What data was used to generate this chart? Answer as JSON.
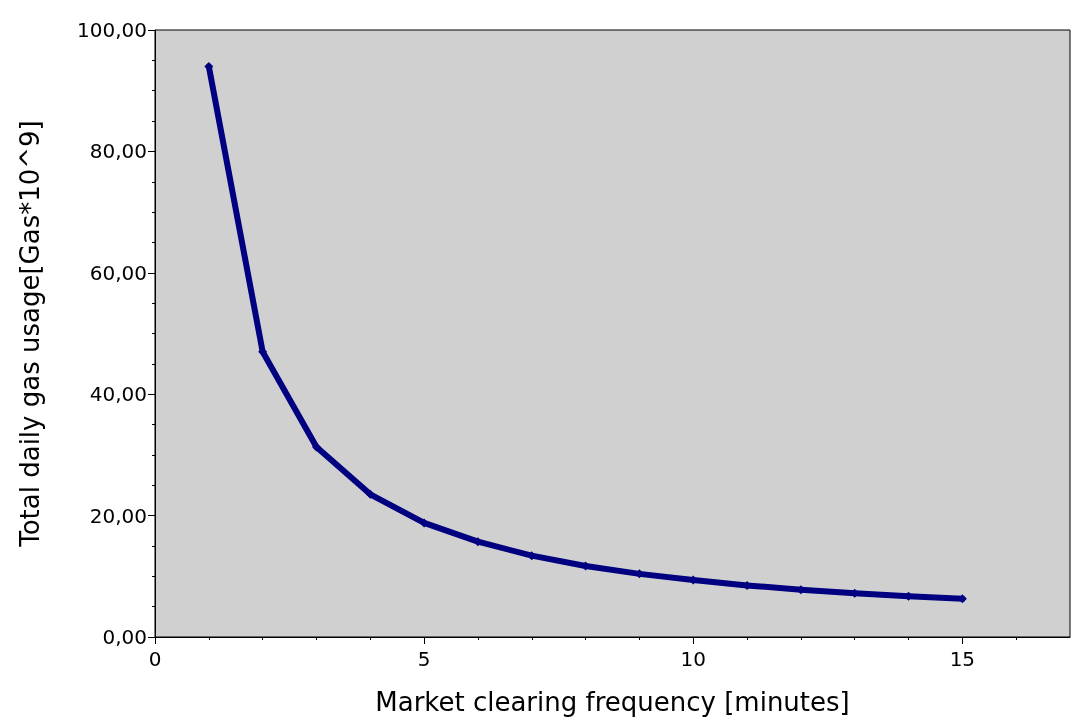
{
  "chart_data": {
    "type": "line",
    "xlabel": "Market clearing frequency [minutes]",
    "ylabel": "Total daily gas usage[Gas*10^9]",
    "x": [
      1,
      2,
      3,
      4,
      5,
      6,
      7,
      8,
      9,
      10,
      11,
      12,
      13,
      14,
      15
    ],
    "series": [
      {
        "color": "#000080",
        "values": [
          94,
          47,
          31.3,
          23.5,
          18.8,
          15.7,
          13.4,
          11.7,
          10.4,
          9.4,
          8.5,
          7.8,
          7.2,
          6.7,
          6.3
        ]
      }
    ],
    "xlim": [
      0,
      17
    ],
    "xticks": [
      0,
      5,
      10,
      15
    ],
    "ylim": [
      0,
      100
    ],
    "yticks": [
      {
        "value": 0,
        "label": "0,00"
      },
      {
        "value": 20,
        "label": "20,00"
      },
      {
        "value": 40,
        "label": "40,00"
      },
      {
        "value": 60,
        "label": "60,00"
      },
      {
        "value": 80,
        "label": "80,00"
      },
      {
        "value": 100,
        "label": "100,00"
      }
    ],
    "grid": false,
    "marker": "diamond",
    "line_style": "solid"
  }
}
